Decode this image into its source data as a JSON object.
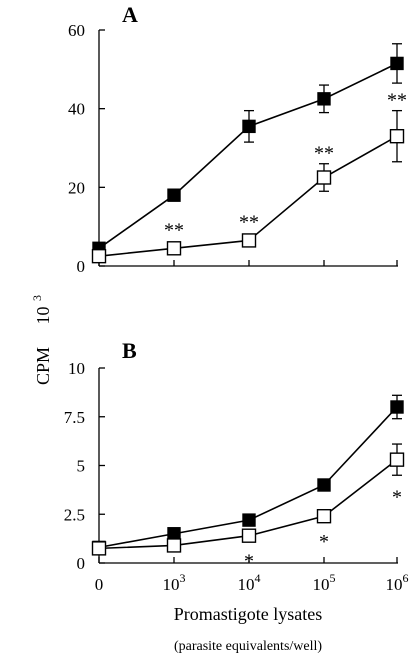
{
  "figure": {
    "ylabel": "CPM",
    "ylabel_multiplier": "10",
    "ylabel_multiplier_exp": "3",
    "xlabel": "Promastigote lysates",
    "xlabel_sub": "(parasite equivalents/well)"
  },
  "chart_data": [
    {
      "type": "line",
      "panel": "A",
      "categories": [
        "0",
        "10^3",
        "10^4",
        "10^5",
        "10^6"
      ],
      "x_tick_labels": [
        {
          "base": "0",
          "exp": ""
        },
        {
          "base": "10",
          "exp": "3"
        },
        {
          "base": "10",
          "exp": "4"
        },
        {
          "base": "10",
          "exp": "5"
        },
        {
          "base": "10",
          "exp": "6"
        }
      ],
      "ylim": [
        0,
        60
      ],
      "yticks": [
        "0",
        "20",
        "40",
        "60"
      ],
      "ytick_values": [
        0,
        20,
        40,
        60
      ],
      "series": [
        {
          "style": "filled-square",
          "values": [
            4.5,
            18,
            35.5,
            42.5,
            51.5
          ],
          "errors": [
            0,
            0,
            4,
            3.5,
            5
          ]
        },
        {
          "style": "open-square",
          "values": [
            2.5,
            4.5,
            6.5,
            22.5,
            33
          ],
          "errors": [
            0,
            0,
            0,
            3.5,
            6.5
          ]
        }
      ],
      "annotations": [
        {
          "text": "**",
          "index": 1
        },
        {
          "text": "**",
          "index": 2
        },
        {
          "text": "**",
          "index": 3
        },
        {
          "text": "**",
          "index": 4
        }
      ]
    },
    {
      "type": "line",
      "panel": "B",
      "categories": [
        "0",
        "10^3",
        "10^4",
        "10^5",
        "10^6"
      ],
      "ylim": [
        0,
        10
      ],
      "yticks": [
        "0",
        "2.5",
        "5",
        "7.5",
        "10"
      ],
      "ytick_values": [
        0,
        2.5,
        5,
        7.5,
        10
      ],
      "series": [
        {
          "style": "filled-square",
          "values": [
            0.8,
            1.5,
            2.2,
            4.0,
            8.0
          ],
          "errors": [
            0,
            0,
            0,
            0,
            0.6
          ]
        },
        {
          "style": "open-square",
          "values": [
            0.75,
            0.9,
            1.4,
            2.4,
            5.3
          ],
          "errors": [
            0,
            0,
            0,
            0,
            0.8
          ]
        }
      ],
      "annotations": [
        {
          "text": "*",
          "index": 2
        },
        {
          "text": "*",
          "index": 3
        },
        {
          "text": "*",
          "index": 4
        }
      ]
    }
  ]
}
